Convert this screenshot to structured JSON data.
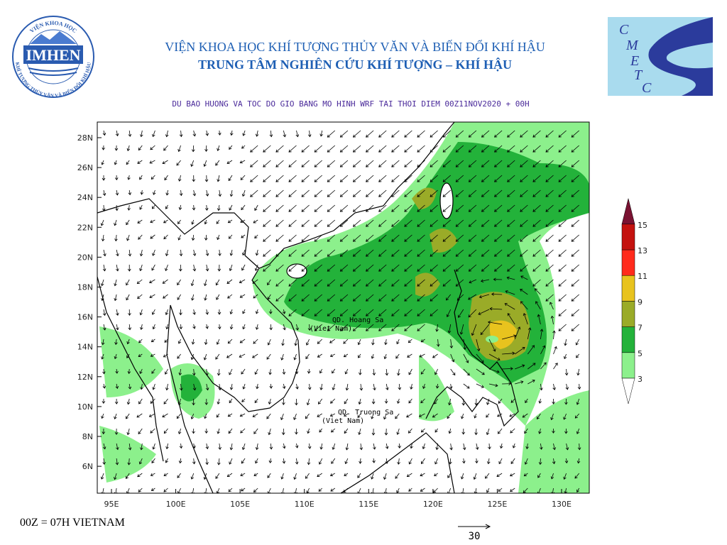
{
  "header": {
    "line1": "VIỆN KHOA HỌC KHÍ TƯỢNG THỦY VĂN VÀ BIẾN ĐỔI KHÍ HẬU",
    "line2": "TRUNG TÂM NGHIÊN CỨU KHÍ TƯỢNG – KHÍ HẬU",
    "subtitle": "DU BAO HUONG VA TOC DO GIO BANG MO HINH WRF TAI THOI DIEM  00Z11NOV2020 + 00H"
  },
  "logos": {
    "imhen": {
      "name": "IMHEN",
      "ring_top": "VIỆN KHOA HỌC",
      "ring_bottom": "KHÍ TƯỢNG THỦY VĂN VÀ BIẾN ĐỔI KHÍ HẬU"
    },
    "cmetc": {
      "letters": [
        "C",
        "M",
        "E",
        "T",
        "C"
      ]
    }
  },
  "map": {
    "lat_labels": [
      "28N",
      "26N",
      "24N",
      "22N",
      "20N",
      "18N",
      "16N",
      "14N",
      "12N",
      "10N",
      "8N",
      "6N"
    ],
    "lon_labels": [
      "95E",
      "100E",
      "105E",
      "110E",
      "115E",
      "120E",
      "125E",
      "130E"
    ],
    "annotations": [
      {
        "name": "QD. Hoang Sa",
        "sub": "(Viet Nam)"
      },
      {
        "name": "QD. Truong Sa",
        "sub": "(Viet Nam)"
      }
    ]
  },
  "colorbar": {
    "levels": [
      3,
      5,
      7,
      9,
      11,
      13,
      15
    ],
    "colors": [
      "#8cf08c",
      "#23b23a",
      "#9aab28",
      "#e8c31e",
      "#ff2b1c",
      "#c4120f",
      "#7a1232"
    ]
  },
  "footer": {
    "note": "00Z = 07H VIETNAM",
    "vector_ref": "30"
  }
}
